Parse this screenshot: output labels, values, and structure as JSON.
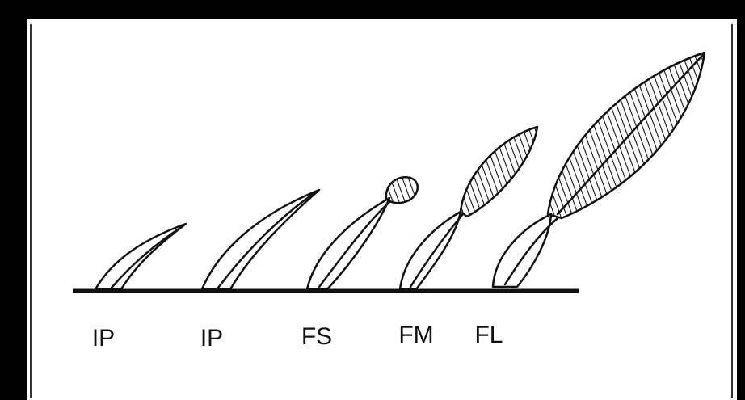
{
  "labels": [
    "IP",
    "IP",
    "FS",
    "FM",
    "FL"
  ]
}
